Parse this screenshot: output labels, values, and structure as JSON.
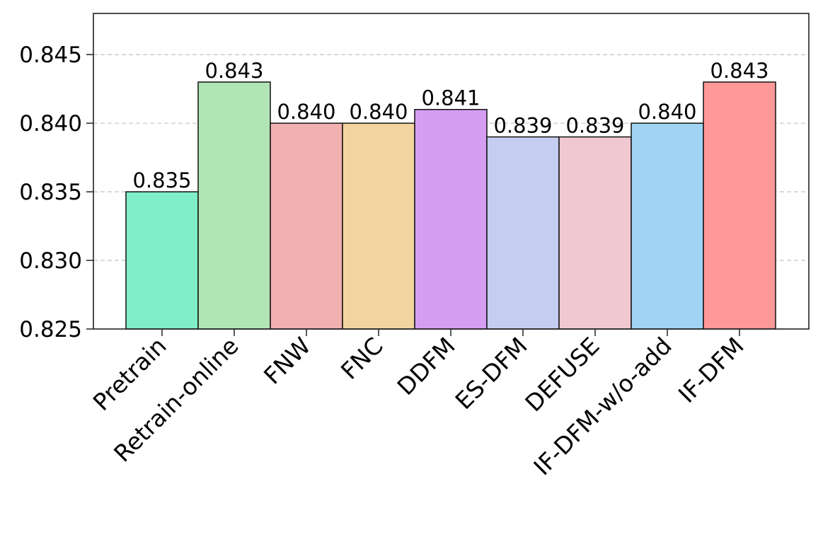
{
  "chart_data": {
    "type": "bar",
    "title": "",
    "xlabel": "",
    "ylabel": "",
    "categories": [
      "Pretrain",
      "Retrain-online",
      "FNW",
      "FNC",
      "DDFM",
      "ES-DFM",
      "DEFUSE",
      "IF-DFM-w/o-add",
      "IF-DFM"
    ],
    "values": [
      0.835,
      0.843,
      0.84,
      0.84,
      0.841,
      0.839,
      0.839,
      0.84,
      0.843
    ],
    "data_labels": [
      "0.835",
      "0.843",
      "0.840",
      "0.840",
      "0.841",
      "0.839",
      "0.839",
      "0.840",
      "0.843"
    ],
    "colors": [
      "#80eec8",
      "#b2e5b5",
      "#f2b0b0",
      "#f2d49e",
      "#d59ef2",
      "#c5cef0",
      "#f0c8d2",
      "#a0d4f2",
      "#ff9999"
    ],
    "ylim": [
      0.825,
      0.848
    ],
    "yticks": [
      0.825,
      0.83,
      0.835,
      0.84,
      0.845
    ],
    "ytick_labels": [
      "0.825",
      "0.830",
      "0.835",
      "0.840",
      "0.845"
    ],
    "grid": "y-dashed",
    "legend": "none"
  }
}
